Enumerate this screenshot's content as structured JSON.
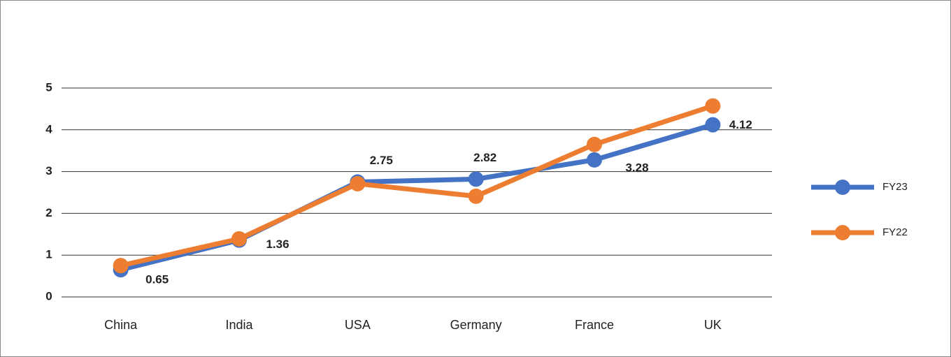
{
  "chart_data": {
    "type": "line",
    "categories": [
      "China",
      "India",
      "USA",
      "Germany",
      "France",
      "UK"
    ],
    "series": [
      {
        "name": "FY23",
        "color": "#4472c4",
        "values": [
          0.65,
          1.36,
          2.75,
          2.82,
          3.28,
          4.12
        ]
      },
      {
        "name": "FY22",
        "color": "#ed7d31",
        "values": [
          0.75,
          1.39,
          2.71,
          2.41,
          3.65,
          4.57
        ]
      }
    ],
    "labeled_series": 0,
    "ylim": [
      0,
      5
    ],
    "yticks": [
      0,
      1,
      2,
      3,
      4,
      5
    ],
    "grid": true,
    "legend": "right"
  }
}
